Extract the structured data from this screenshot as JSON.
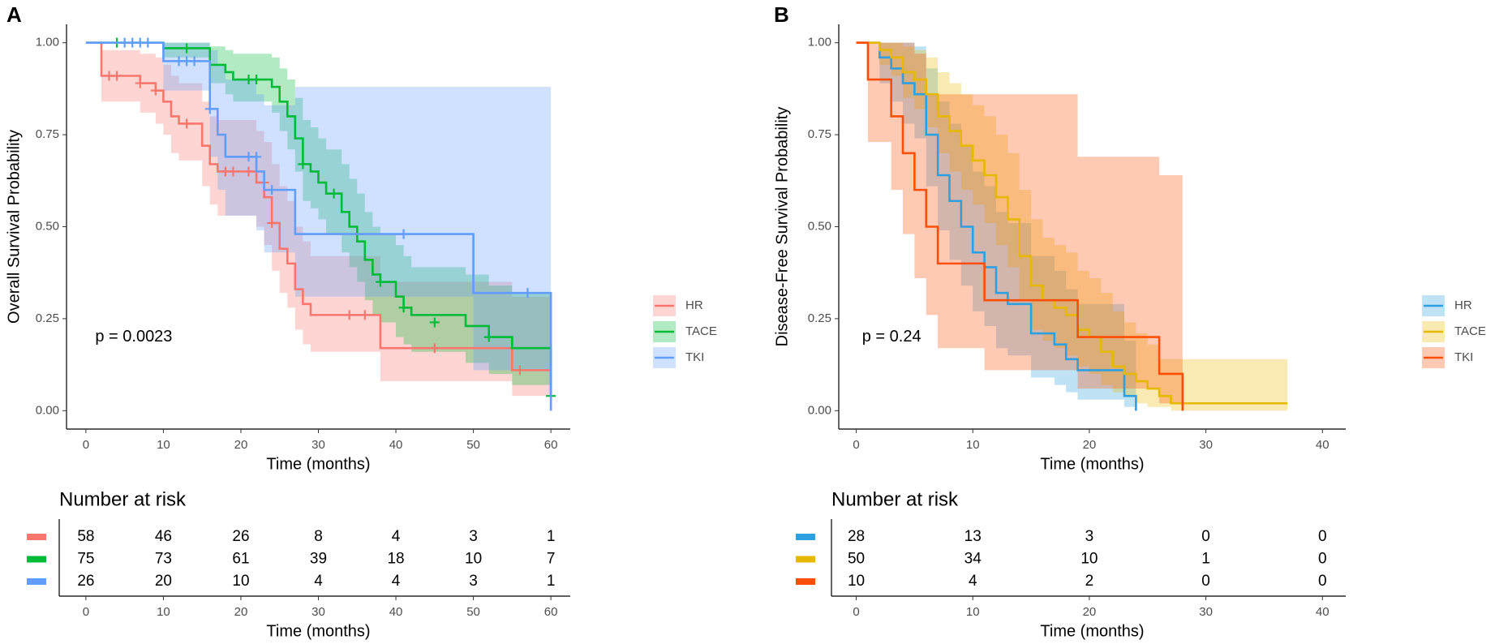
{
  "chart_data": [
    {
      "type": "km",
      "panel": "A",
      "ylabel": "Overall Survival Probability",
      "xlabel": "Time (months)",
      "annotation": "p = 0.0023",
      "xlim": [
        -2.5,
        62.5
      ],
      "ylim": [
        -0.05,
        1.05
      ],
      "xticks": [
        0,
        10,
        20,
        30,
        40,
        50,
        60
      ],
      "yticks": [
        {
          "value": 0,
          "label": "0.00"
        },
        {
          "value": 0.25,
          "label": "0.25"
        },
        {
          "value": 0.5,
          "label": "0.50"
        },
        {
          "value": 0.75,
          "label": "0.75"
        },
        {
          "value": 1,
          "label": "1.00"
        }
      ],
      "legend": "right",
      "series": [
        {
          "name": "HR",
          "color": "#F8766D",
          "x": [
            0,
            2,
            7,
            9,
            10,
            11,
            12,
            15,
            16,
            17,
            22,
            23,
            24,
            25,
            26,
            27,
            28,
            29,
            38,
            55,
            60
          ],
          "values": [
            1,
            0.91,
            0.89,
            0.87,
            0.84,
            0.8,
            0.78,
            0.72,
            0.67,
            0.65,
            0.62,
            0.58,
            0.51,
            0.44,
            0.4,
            0.33,
            0.29,
            0.26,
            0.17,
            0.11,
            0.11
          ],
          "lower": [
            1,
            0.84,
            0.81,
            0.78,
            0.75,
            0.7,
            0.68,
            0.61,
            0.56,
            0.53,
            0.5,
            0.45,
            0.38,
            0.32,
            0.28,
            0.22,
            0.18,
            0.16,
            0.08,
            0.04,
            0.04
          ],
          "upper": [
            1,
            0.98,
            0.97,
            0.96,
            0.94,
            0.91,
            0.89,
            0.84,
            0.8,
            0.79,
            0.76,
            0.73,
            0.67,
            0.61,
            0.57,
            0.5,
            0.46,
            0.42,
            0.35,
            0.31,
            0.31
          ],
          "censor_x": [
            3,
            4,
            7,
            9,
            13,
            18,
            19,
            21,
            23,
            24,
            34,
            36,
            45,
            56
          ],
          "censor_values": [
            0.91,
            0.91,
            0.89,
            0.87,
            0.78,
            0.65,
            0.65,
            0.65,
            0.62,
            0.51,
            0.26,
            0.26,
            0.17,
            0.11
          ]
        },
        {
          "name": "TACE",
          "color": "#00BA38",
          "x": [
            0,
            10,
            16,
            18,
            19,
            24,
            25,
            26,
            27,
            28,
            29,
            30,
            31,
            33,
            34,
            35,
            36,
            37,
            38,
            40,
            41,
            42,
            49,
            52,
            55,
            60
          ],
          "values": [
            1,
            0.985,
            0.94,
            0.92,
            0.9,
            0.88,
            0.84,
            0.8,
            0.74,
            0.67,
            0.65,
            0.62,
            0.59,
            0.54,
            0.5,
            0.46,
            0.41,
            0.37,
            0.35,
            0.31,
            0.28,
            0.26,
            0.23,
            0.2,
            0.17,
            0.04
          ],
          "lower": [
            1,
            0.96,
            0.89,
            0.86,
            0.84,
            0.81,
            0.76,
            0.71,
            0.65,
            0.57,
            0.55,
            0.52,
            0.48,
            0.43,
            0.39,
            0.35,
            0.3,
            0.26,
            0.24,
            0.2,
            0.18,
            0.16,
            0.13,
            0.1,
            0.07,
            0.01
          ],
          "upper": [
            1,
            1,
            0.99,
            0.98,
            0.97,
            0.96,
            0.93,
            0.9,
            0.85,
            0.79,
            0.77,
            0.74,
            0.71,
            0.67,
            0.63,
            0.59,
            0.54,
            0.5,
            0.48,
            0.45,
            0.42,
            0.39,
            0.37,
            0.34,
            0.32,
            0.2
          ],
          "censor_x": [
            4,
            13,
            21,
            22,
            28,
            32,
            38,
            41,
            45,
            52,
            60
          ],
          "censor_values": [
            1,
            0.985,
            0.9,
            0.9,
            0.67,
            0.59,
            0.35,
            0.28,
            0.24,
            0.2,
            0.04
          ]
        },
        {
          "name": "TKI",
          "color": "#619CFF",
          "x": [
            0,
            10,
            16,
            17,
            18,
            22,
            23,
            27,
            50,
            60
          ],
          "values": [
            1,
            0.95,
            0.82,
            0.75,
            0.69,
            0.65,
            0.6,
            0.48,
            0.32,
            0
          ],
          "lower": [
            1,
            0.87,
            0.69,
            0.6,
            0.53,
            0.49,
            0.43,
            0.31,
            0.11,
            0
          ],
          "upper": [
            1,
            1,
            0.98,
            0.94,
            0.9,
            0.86,
            0.83,
            0.88,
            0.88,
            0.88
          ],
          "censor_x": [
            5,
            6,
            7,
            8,
            12,
            13,
            14,
            16,
            21,
            22,
            24,
            41,
            57
          ],
          "censor_values": [
            1,
            1,
            1,
            1,
            0.95,
            0.95,
            0.95,
            0.82,
            0.69,
            0.69,
            0.6,
            0.48,
            0.32
          ]
        }
      ],
      "risk_table": {
        "title": "Number at risk",
        "rows": [
          [
            58,
            46,
            26,
            8,
            4,
            3,
            1
          ],
          [
            75,
            73,
            61,
            39,
            18,
            10,
            7
          ],
          [
            26,
            20,
            10,
            4,
            4,
            3,
            1
          ]
        ]
      }
    },
    {
      "type": "km",
      "panel": "B",
      "ylabel": "Disease-Free Survival Probability",
      "xlabel": "Time (months)",
      "annotation": "p = 0.24",
      "xlim": [
        -1.5,
        42
      ],
      "ylim": [
        -0.05,
        1.05
      ],
      "xticks": [
        0,
        10,
        20,
        30,
        40
      ],
      "yticks": [
        {
          "value": 0,
          "label": "0.00"
        },
        {
          "value": 0.25,
          "label": "0.25"
        },
        {
          "value": 0.5,
          "label": "0.50"
        },
        {
          "value": 0.75,
          "label": "0.75"
        },
        {
          "value": 1,
          "label": "1.00"
        }
      ],
      "legend": "right",
      "series": [
        {
          "name": "HR",
          "color": "#2E9FDF",
          "x": [
            0,
            2,
            3,
            4,
            5,
            6,
            7,
            8,
            9,
            10,
            11,
            12,
            13,
            15,
            17,
            18,
            19,
            23,
            24
          ],
          "values": [
            1,
            0.96,
            0.93,
            0.89,
            0.86,
            0.75,
            0.64,
            0.57,
            0.5,
            0.43,
            0.39,
            0.32,
            0.29,
            0.21,
            0.18,
            0.14,
            0.11,
            0.04,
            0
          ],
          "lower": [
            1,
            0.89,
            0.84,
            0.78,
            0.74,
            0.61,
            0.49,
            0.41,
            0.34,
            0.27,
            0.23,
            0.17,
            0.15,
            0.09,
            0.07,
            0.05,
            0.03,
            0.01,
            0
          ],
          "upper": [
            1,
            1,
            1,
            1,
            0.99,
            0.93,
            0.84,
            0.78,
            0.72,
            0.65,
            0.61,
            0.54,
            0.51,
            0.42,
            0.38,
            0.33,
            0.29,
            0.19,
            0
          ]
        },
        {
          "name": "TACE",
          "color": "#E7B800",
          "x": [
            0,
            2,
            3,
            4,
            5,
            6,
            7,
            8,
            9,
            10,
            11,
            12,
            13,
            14,
            15,
            16,
            17,
            18,
            19,
            20,
            21,
            22,
            23,
            24,
            25,
            26,
            27,
            37
          ],
          "values": [
            1,
            0.98,
            0.96,
            0.92,
            0.9,
            0.86,
            0.8,
            0.76,
            0.72,
            0.68,
            0.64,
            0.58,
            0.52,
            0.42,
            0.34,
            0.3,
            0.28,
            0.26,
            0.22,
            0.2,
            0.16,
            0.12,
            0.1,
            0.08,
            0.06,
            0.04,
            0.02,
            0.02
          ],
          "lower": [
            1,
            0.94,
            0.91,
            0.85,
            0.82,
            0.77,
            0.7,
            0.65,
            0.6,
            0.56,
            0.51,
            0.45,
            0.39,
            0.3,
            0.22,
            0.19,
            0.17,
            0.15,
            0.12,
            0.1,
            0.07,
            0.05,
            0.04,
            0.02,
            0.01,
            0.01,
            0,
            0
          ],
          "upper": [
            1,
            1,
            1,
            0.99,
            0.98,
            0.96,
            0.92,
            0.89,
            0.86,
            0.83,
            0.8,
            0.75,
            0.7,
            0.6,
            0.52,
            0.47,
            0.45,
            0.43,
            0.38,
            0.36,
            0.32,
            0.27,
            0.24,
            0.21,
            0.18,
            0.14,
            0.14,
            0.14
          ]
        },
        {
          "name": "TKI",
          "color": "#FC4E07",
          "x": [
            0,
            1,
            3,
            4,
            5,
            6,
            7,
            11,
            19,
            26,
            28
          ],
          "values": [
            1,
            0.9,
            0.8,
            0.7,
            0.6,
            0.5,
            0.4,
            0.3,
            0.2,
            0.1,
            0
          ],
          "lower": [
            1,
            0.73,
            0.6,
            0.48,
            0.36,
            0.26,
            0.17,
            0.11,
            0.06,
            0.02,
            0
          ],
          "upper": [
            1,
            1,
            1,
            1,
            0.97,
            0.86,
            0.86,
            0.86,
            0.69,
            0.64,
            0
          ]
        }
      ],
      "risk_table": {
        "title": "Number at risk",
        "rows": [
          [
            28,
            13,
            3,
            0,
            0
          ],
          [
            50,
            34,
            10,
            1,
            0
          ],
          [
            10,
            4,
            2,
            0,
            0
          ]
        ]
      }
    }
  ]
}
